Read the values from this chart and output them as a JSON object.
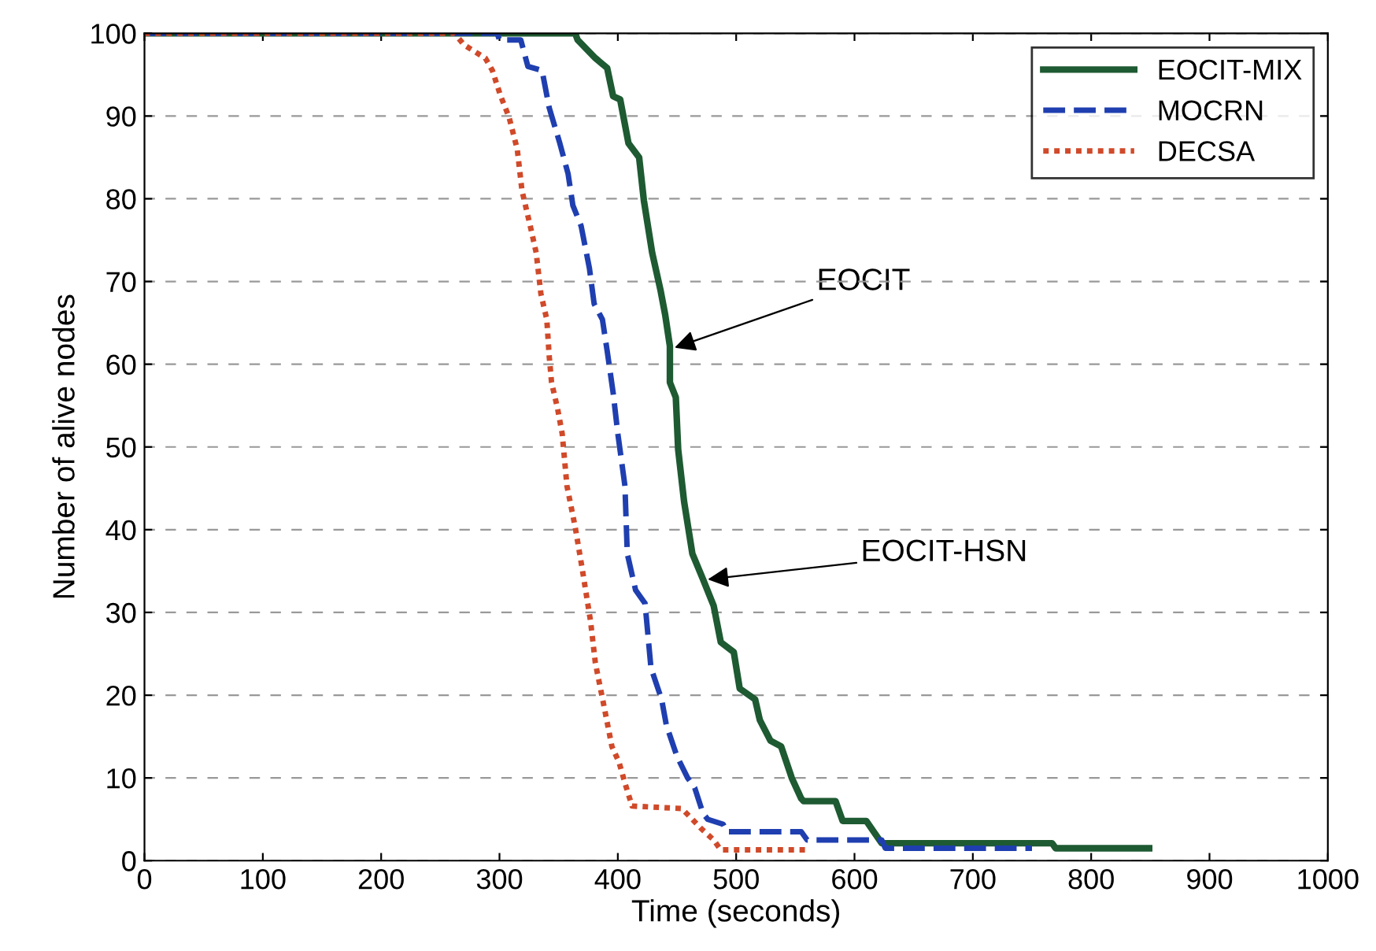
{
  "chart_data": {
    "type": "line",
    "xlabel": "Time (seconds)",
    "ylabel": "Number of alive nodes",
    "xlim": [
      0,
      1000
    ],
    "ylim": [
      0,
      100
    ],
    "xticks": [
      0,
      100,
      200,
      300,
      400,
      500,
      600,
      700,
      800,
      900,
      1000
    ],
    "yticks": [
      0,
      10,
      20,
      30,
      40,
      50,
      60,
      70,
      80,
      90,
      100
    ],
    "grid": "y",
    "legend": "top right",
    "marker": "none",
    "series": [
      {
        "name": "EOCIT-MIX",
        "color": "#1e5a32",
        "line_style": "solid",
        "x": [
          0,
          364,
          366,
          381,
          391,
          396,
          402,
          409,
          418,
          422,
          429,
          436,
          440,
          444,
          444,
          449,
          451,
          456,
          463,
          472,
          481,
          487,
          498,
          503,
          516,
          520,
          529,
          538,
          547,
          555,
          557,
          584,
          590,
          610,
          623,
          767,
          770,
          849
        ],
        "values": [
          100,
          100,
          99.2,
          97,
          95.8,
          92.4,
          92,
          86.7,
          85,
          79.8,
          73.5,
          69,
          66,
          62.2,
          57.8,
          56,
          49.7,
          43.4,
          37.1,
          34,
          30.8,
          26.4,
          25.2,
          20.8,
          19.5,
          17,
          14.5,
          13.8,
          10,
          7.5,
          7.2,
          7.2,
          4.8,
          4.8,
          2.1,
          2.1,
          1.5,
          1.5
        ]
      },
      {
        "name": "MOCRN",
        "color": "#1f3fb0",
        "line_style": "dashed",
        "x": [
          0,
          298,
          300,
          318,
          324,
          336,
          342,
          351,
          358,
          362,
          369,
          376,
          380,
          387,
          391,
          396,
          400,
          406,
          408,
          415,
          423,
          428,
          437,
          441,
          450,
          459,
          465,
          472,
          476,
          489,
          492,
          555,
          560,
          623,
          626,
          750
        ],
        "values": [
          100,
          100,
          99.2,
          99.2,
          96,
          95.5,
          91,
          86.7,
          83,
          79.2,
          76.7,
          71.6,
          67.3,
          65.4,
          61.6,
          56.6,
          51.6,
          45.3,
          37.1,
          32.7,
          31.1,
          23.3,
          19.5,
          16.4,
          12.6,
          10,
          8.8,
          5.7,
          5,
          4.4,
          3.5,
          3.5,
          2.5,
          2.5,
          1.5,
          1.5
        ]
      },
      {
        "name": "DECSA",
        "color": "#d04a2a",
        "line_style": "dotted",
        "x": [
          0,
          262,
          270,
          288,
          294,
          301,
          308,
          315,
          319,
          326,
          331,
          335,
          340,
          342,
          344,
          349,
          353,
          357,
          364,
          370,
          377,
          381,
          388,
          395,
          401,
          406,
          412,
          454,
          463,
          471,
          481,
          487,
          560
        ],
        "values": [
          100,
          100,
          98.6,
          97,
          95.5,
          92.4,
          89.9,
          86,
          81,
          76.7,
          73.5,
          68.5,
          65.4,
          61,
          57.8,
          54.7,
          51.6,
          45.3,
          40.3,
          35.2,
          28.9,
          23.9,
          18.9,
          13.8,
          11.9,
          9.4,
          6.6,
          6.3,
          5,
          3.8,
          2.5,
          1.3,
          1.3
        ]
      }
    ],
    "annotations": [
      {
        "text": "EOCIT",
        "x": 448,
        "y": 62
      },
      {
        "text": "EOCIT-HSN",
        "x": 476,
        "y": 34
      }
    ]
  }
}
